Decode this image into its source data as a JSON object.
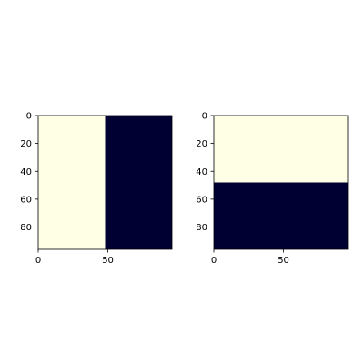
{
  "chart_data": [
    {
      "type": "heatmap",
      "title": "",
      "xlabel": "",
      "ylabel": "",
      "image_shape": [
        96,
        96
      ],
      "xlim": [
        0,
        96
      ],
      "ylim": [
        96,
        0
      ],
      "x_ticks": [
        0,
        50
      ],
      "y_ticks": [
        0,
        20,
        40,
        60,
        80
      ],
      "split": "vertical",
      "split_at": 48,
      "regions": [
        {
          "name": "light",
          "x_range": [
            0,
            48
          ],
          "y_range": [
            0,
            96
          ],
          "color": "#ffffe5"
        },
        {
          "name": "dark",
          "x_range": [
            48,
            96
          ],
          "y_range": [
            0,
            96
          ],
          "color": "#000033"
        }
      ]
    },
    {
      "type": "heatmap",
      "title": "",
      "xlabel": "",
      "ylabel": "",
      "image_shape": [
        96,
        96
      ],
      "xlim": [
        0,
        96
      ],
      "ylim": [
        96,
        0
      ],
      "x_ticks": [
        0,
        50
      ],
      "y_ticks": [
        0,
        20,
        40,
        60,
        80
      ],
      "split": "horizontal",
      "split_at": 48,
      "regions": [
        {
          "name": "light",
          "x_range": [
            0,
            96
          ],
          "y_range": [
            0,
            48
          ],
          "color": "#ffffe5"
        },
        {
          "name": "dark",
          "x_range": [
            0,
            96
          ],
          "y_range": [
            48,
            96
          ],
          "color": "#000033"
        }
      ]
    }
  ]
}
